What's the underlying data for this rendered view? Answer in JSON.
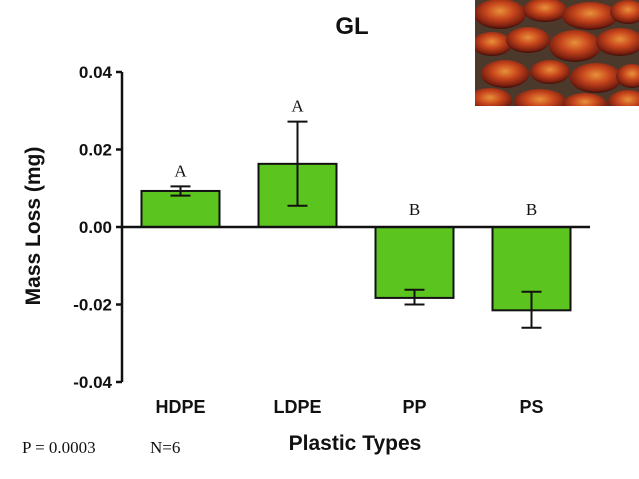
{
  "chart_data": {
    "type": "bar",
    "title": "GL",
    "xlabel": "Plastic Types",
    "ylabel": "Mass Loss (mg)",
    "ylim": [
      -0.04,
      0.04
    ],
    "yticks": [
      0.04,
      0.02,
      0.0,
      -0.02,
      -0.04
    ],
    "ytick_labels": [
      "0.04",
      "0.02",
      "0.00",
      "-0.02",
      "-0.04"
    ],
    "categories": [
      "HDPE",
      "LDPE",
      "PP",
      "PS"
    ],
    "values": [
      0.0093,
      0.0163,
      -0.0183,
      -0.0215
    ],
    "error_low": [
      0.0081,
      0.0055,
      -0.02,
      -0.026
    ],
    "error_high": [
      0.0105,
      0.0272,
      -0.0162,
      -0.0167
    ],
    "significance_letters": [
      "A",
      "A",
      "B",
      "B"
    ],
    "bar_color": "#5cc41f",
    "grid": false
  },
  "footer": {
    "p_value": "P = 0.0003",
    "n": "N=6"
  },
  "photo": {
    "icon": "reishi-mushroom-photo"
  }
}
